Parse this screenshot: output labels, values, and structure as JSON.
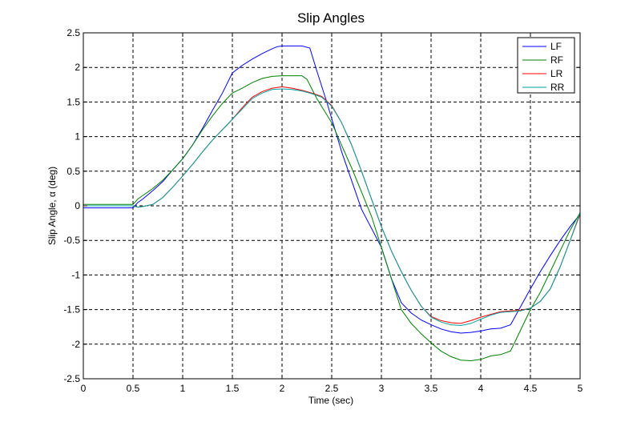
{
  "chart_data": {
    "type": "line",
    "title": "Slip Angles",
    "xlabel": "Time (sec)",
    "ylabel": "Slip Angle, α (deg)",
    "xlim": [
      0,
      5
    ],
    "ylim": [
      -2.5,
      2.5
    ],
    "x_ticks": [
      0,
      0.5,
      1,
      1.5,
      2,
      2.5,
      3,
      3.5,
      4,
      4.5,
      5
    ],
    "y_ticks": [
      2.5,
      2,
      1.5,
      1,
      0.5,
      0,
      -0.5,
      -1,
      -1.5,
      -2,
      -2.5
    ],
    "x_tick_labels": [
      "0",
      "0.5",
      "1",
      "1.5",
      "2",
      "2.5",
      "3",
      "3.5",
      "4",
      "4.5",
      "5"
    ],
    "y_tick_labels": [
      "2.5",
      "2",
      "1.5",
      "1",
      "0.5",
      "0",
      "-0.5",
      "-1",
      "-1.5",
      "-2",
      "-2.5"
    ],
    "grid": true,
    "legend_position": "top-right",
    "series": [
      {
        "name": "LF",
        "color": "#0000ff",
        "x": [
          0,
          0.5,
          0.55,
          0.6,
          0.7,
          0.8,
          0.9,
          1.0,
          1.1,
          1.2,
          1.3,
          1.4,
          1.5,
          1.6,
          1.7,
          1.8,
          1.9,
          1.95,
          2.0,
          2.1,
          2.2,
          2.28,
          2.35,
          2.45,
          2.6,
          2.8,
          3.0,
          3.1,
          3.2,
          3.3,
          3.4,
          3.5,
          3.6,
          3.7,
          3.8,
          3.9,
          4.0,
          4.1,
          4.2,
          4.3,
          4.5,
          4.6,
          4.7,
          4.8,
          4.9,
          5.0
        ],
        "y": [
          -0.03,
          -0.03,
          0.05,
          0.1,
          0.22,
          0.35,
          0.52,
          0.68,
          0.88,
          1.12,
          1.38,
          1.63,
          1.92,
          2.03,
          2.12,
          2.2,
          2.27,
          2.3,
          2.31,
          2.31,
          2.31,
          2.28,
          1.95,
          1.5,
          0.78,
          -0.05,
          -0.6,
          -1.05,
          -1.4,
          -1.55,
          -1.65,
          -1.72,
          -1.78,
          -1.82,
          -1.84,
          -1.83,
          -1.81,
          -1.78,
          -1.77,
          -1.72,
          -1.2,
          -0.95,
          -0.72,
          -0.5,
          -0.3,
          -0.12
        ]
      },
      {
        "name": "RF",
        "color": "#007f00",
        "x": [
          0,
          0.5,
          0.55,
          0.6,
          0.7,
          0.8,
          0.9,
          1.0,
          1.1,
          1.2,
          1.3,
          1.4,
          1.5,
          1.6,
          1.7,
          1.8,
          1.9,
          2.0,
          2.1,
          2.2,
          2.25,
          2.35,
          2.5,
          2.7,
          2.9,
          3.0,
          3.1,
          3.2,
          3.3,
          3.4,
          3.5,
          3.6,
          3.7,
          3.8,
          3.9,
          4.0,
          4.1,
          4.2,
          4.3,
          4.4,
          4.5,
          4.6,
          4.7,
          4.8,
          4.9,
          5.0
        ],
        "y": [
          0.02,
          0.02,
          0.1,
          0.15,
          0.25,
          0.37,
          0.52,
          0.68,
          0.88,
          1.1,
          1.3,
          1.48,
          1.63,
          1.7,
          1.78,
          1.84,
          1.87,
          1.88,
          1.88,
          1.88,
          1.83,
          1.55,
          1.2,
          0.55,
          -0.15,
          -0.6,
          -1.05,
          -1.5,
          -1.7,
          -1.85,
          -1.98,
          -2.1,
          -2.18,
          -2.23,
          -2.24,
          -2.22,
          -2.17,
          -2.15,
          -2.1,
          -1.8,
          -1.5,
          -1.25,
          -0.95,
          -0.65,
          -0.35,
          -0.1
        ]
      },
      {
        "name": "LR",
        "color": "#ff0000",
        "x": [
          0,
          0.5,
          0.55,
          0.6,
          0.7,
          0.8,
          0.9,
          1.0,
          1.1,
          1.2,
          1.3,
          1.4,
          1.5,
          1.6,
          1.7,
          1.8,
          1.9,
          2.0,
          2.1,
          2.2,
          2.3,
          2.4,
          2.5,
          2.6,
          2.7,
          2.8,
          2.9,
          3.0,
          3.1,
          3.2,
          3.3,
          3.4,
          3.5,
          3.6,
          3.7,
          3.8,
          3.9,
          4.0,
          4.1,
          4.2,
          4.3,
          4.4,
          4.5,
          4.6,
          4.7,
          4.8,
          4.9,
          5.0
        ],
        "y": [
          0.0,
          0.0,
          -0.02,
          -0.01,
          0.02,
          0.12,
          0.27,
          0.43,
          0.6,
          0.78,
          0.95,
          1.1,
          1.25,
          1.42,
          1.57,
          1.65,
          1.7,
          1.72,
          1.7,
          1.67,
          1.63,
          1.58,
          1.45,
          1.2,
          0.88,
          0.5,
          0.1,
          -0.3,
          -0.65,
          -0.95,
          -1.22,
          -1.45,
          -1.6,
          -1.66,
          -1.69,
          -1.7,
          -1.66,
          -1.61,
          -1.57,
          -1.53,
          -1.52,
          -1.51,
          -1.48,
          -1.38,
          -1.2,
          -0.88,
          -0.5,
          -0.12
        ]
      },
      {
        "name": "RR",
        "color": "#00a0a0",
        "x": [
          0,
          0.5,
          0.55,
          0.6,
          0.7,
          0.8,
          0.9,
          1.0,
          1.1,
          1.2,
          1.3,
          1.4,
          1.5,
          1.6,
          1.7,
          1.8,
          1.9,
          2.0,
          2.1,
          2.2,
          2.3,
          2.4,
          2.5,
          2.6,
          2.7,
          2.8,
          2.9,
          3.0,
          3.1,
          3.2,
          3.3,
          3.4,
          3.5,
          3.6,
          3.7,
          3.8,
          3.9,
          4.0,
          4.1,
          4.2,
          4.3,
          4.4,
          4.5,
          4.6,
          4.7,
          4.8,
          4.9,
          5.0
        ],
        "y": [
          0.0,
          0.0,
          -0.02,
          -0.01,
          0.02,
          0.12,
          0.27,
          0.43,
          0.6,
          0.78,
          0.95,
          1.1,
          1.25,
          1.4,
          1.55,
          1.63,
          1.68,
          1.69,
          1.68,
          1.66,
          1.62,
          1.57,
          1.44,
          1.2,
          0.88,
          0.5,
          0.1,
          -0.3,
          -0.65,
          -0.95,
          -1.22,
          -1.45,
          -1.61,
          -1.68,
          -1.72,
          -1.73,
          -1.7,
          -1.64,
          -1.58,
          -1.54,
          -1.53,
          -1.52,
          -1.48,
          -1.38,
          -1.2,
          -0.88,
          -0.5,
          -0.1
        ]
      }
    ]
  }
}
